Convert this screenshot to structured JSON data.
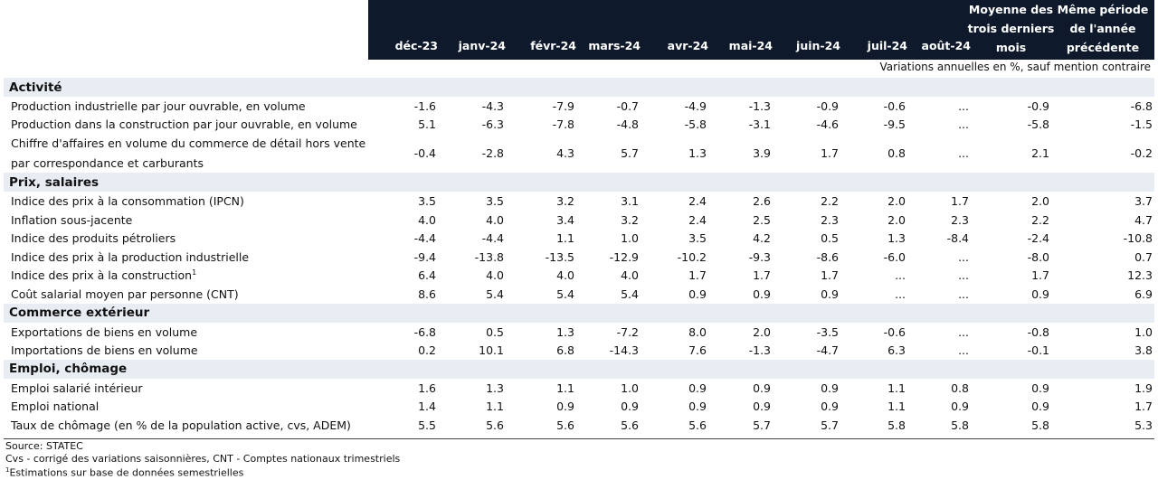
{
  "header": {
    "columns": [
      {
        "label": [
          "déc-23"
        ]
      },
      {
        "label": [
          "janv-24"
        ]
      },
      {
        "label": [
          "févr-24"
        ]
      },
      {
        "label": [
          "mars-24"
        ]
      },
      {
        "label": [
          "avr-24"
        ]
      },
      {
        "label": [
          "mai-24"
        ]
      },
      {
        "label": [
          "juin-24"
        ]
      },
      {
        "label": [
          "juil-24"
        ]
      },
      {
        "label": [
          "août-24"
        ]
      },
      {
        "label": [
          "Moyenne des",
          "trois derniers",
          "mois"
        ]
      },
      {
        "label": [
          "Même période",
          "de l'année",
          "précédente"
        ]
      }
    ],
    "note": "Variations annuelles en %, sauf mention contraire"
  },
  "sections": [
    {
      "title": "Activité",
      "rows": [
        {
          "label": "Production industrielle par jour ouvrable, en volume",
          "values": [
            "-1.6",
            "-4.3",
            "-7.9",
            "-0.7",
            "-4.9",
            "-1.3",
            "-0.9",
            "-0.6",
            "...",
            "-0.9",
            "-6.8"
          ]
        },
        {
          "label": "Production dans la construction par jour ouvrable, en volume",
          "values": [
            "5.1",
            "-6.3",
            "-7.8",
            "-4.8",
            "-5.8",
            "-3.1",
            "-4.6",
            "-9.5",
            "...",
            "-5.8",
            "-1.5"
          ]
        },
        {
          "label": "Chiffre d'affaires en volume du commerce de détail hors vente par correspondance et carburants",
          "two_line": true,
          "values": [
            "-0.4",
            "-2.8",
            "4.3",
            "5.7",
            "1.3",
            "3.9",
            "1.7",
            "0.8",
            "...",
            "2.1",
            "-0.2"
          ]
        }
      ]
    },
    {
      "title": "Prix, salaires",
      "rows": [
        {
          "label": "Indice des prix à la consommation (IPCN)",
          "values": [
            "3.5",
            "3.5",
            "3.2",
            "3.1",
            "2.4",
            "2.6",
            "2.2",
            "2.0",
            "1.7",
            "2.0",
            "3.7"
          ]
        },
        {
          "label": "Inflation sous-jacente",
          "values": [
            "4.0",
            "4.0",
            "3.4",
            "3.2",
            "2.4",
            "2.5",
            "2.3",
            "2.0",
            "2.3",
            "2.2",
            "4.7"
          ]
        },
        {
          "label": "Indice des produits pétroliers",
          "values": [
            "-4.4",
            "-4.4",
            "1.1",
            "1.0",
            "3.5",
            "4.2",
            "0.5",
            "1.3",
            "-8.4",
            "-2.4",
            "-10.8"
          ]
        },
        {
          "label": "Indice des prix à la production industrielle",
          "values": [
            "-9.4",
            "-13.8",
            "-13.5",
            "-12.9",
            "-10.2",
            "-9.3",
            "-8.6",
            "-6.0",
            "...",
            "-8.0",
            "0.7"
          ]
        },
        {
          "label": "Indice des prix à la construction",
          "sup": "1",
          "values": [
            "6.4",
            "4.0",
            "4.0",
            "4.0",
            "1.7",
            "1.7",
            "1.7",
            "...",
            "...",
            "1.7",
            "12.3"
          ]
        },
        {
          "label": "Coût salarial moyen par personne (CNT)",
          "values": [
            "8.6",
            "5.4",
            "5.4",
            "5.4",
            "0.9",
            "0.9",
            "0.9",
            "...",
            "...",
            "0.9",
            "6.9"
          ]
        }
      ]
    },
    {
      "title": "Commerce extérieur",
      "rows": [
        {
          "label": "Exportations de biens en volume",
          "values": [
            "-6.8",
            "0.5",
            "1.3",
            "-7.2",
            "8.0",
            "2.0",
            "-3.5",
            "-0.6",
            "...",
            "-0.8",
            "1.0"
          ]
        },
        {
          "label": "Importations de biens en volume",
          "values": [
            "0.2",
            "10.1",
            "6.8",
            "-14.3",
            "7.6",
            "-1.3",
            "-4.7",
            "6.3",
            "...",
            "-0.1",
            "3.8"
          ]
        }
      ]
    },
    {
      "title": "Emploi, chômage",
      "rows": [
        {
          "label": "Emploi salarié intérieur",
          "values": [
            "1.6",
            "1.3",
            "1.1",
            "1.0",
            "0.9",
            "0.9",
            "0.9",
            "1.1",
            "0.8",
            "0.9",
            "1.9"
          ]
        },
        {
          "label": "Emploi national",
          "values": [
            "1.4",
            "1.1",
            "0.9",
            "0.9",
            "0.9",
            "0.9",
            "0.9",
            "1.1",
            "0.9",
            "0.9",
            "1.7"
          ]
        },
        {
          "label": "Taux de chômage (en % de la population active, cvs, ADEM)",
          "values": [
            "5.5",
            "5.6",
            "5.6",
            "5.6",
            "5.6",
            "5.7",
            "5.7",
            "5.8",
            "5.8",
            "5.8",
            "5.3"
          ]
        }
      ]
    }
  ],
  "footer": {
    "source": "Source: STATEC",
    "abbrev": "Cvs - corrigé des variations saisonnières, CNT - Comptes nationaux trimestriels",
    "footnote_mark": "1",
    "footnote": "Estimations sur base de données semestrielles"
  },
  "colors": {
    "header_bg": "#0e1a2b",
    "section_bg": "#e8edf4"
  }
}
